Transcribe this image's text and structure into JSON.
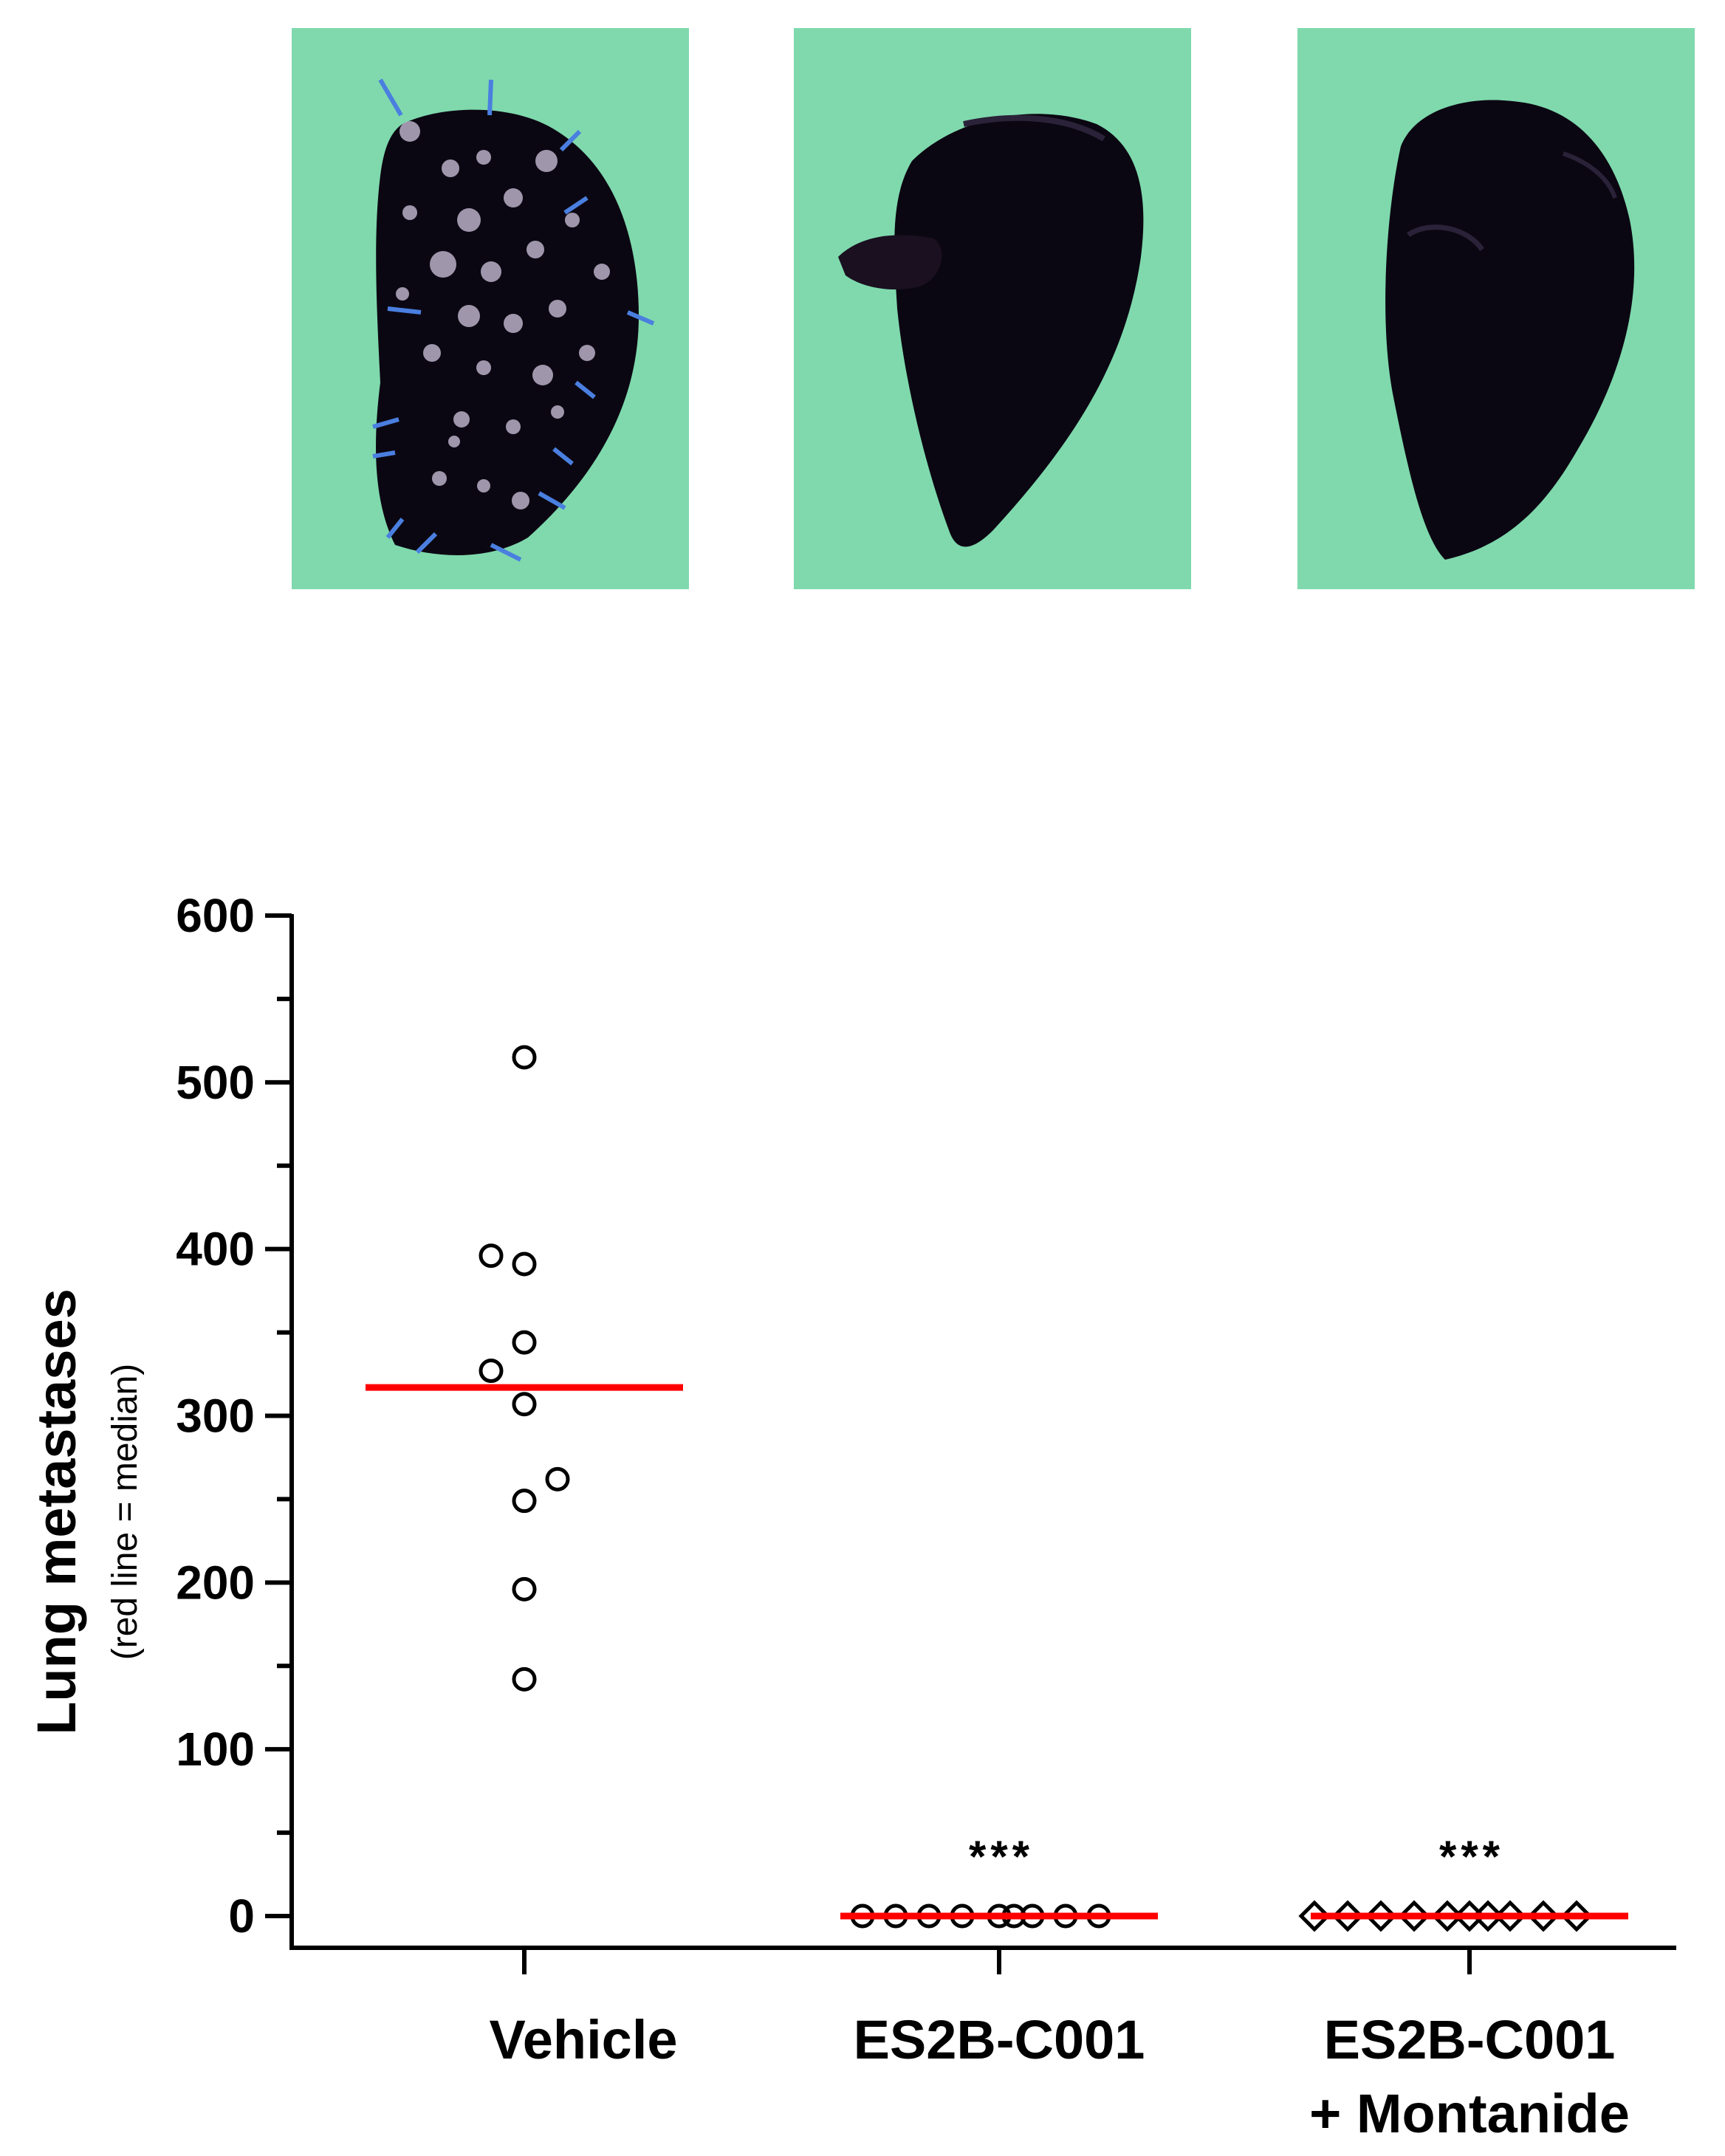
{
  "colors": {
    "background_paper": "#7fd9ad",
    "lung": "#0b0712",
    "metastasis_nodule": "#b9b0c8",
    "arrow": "#4a7fe0",
    "median_line": "#ff0000",
    "marker_stroke": "#000000"
  },
  "photos": [
    {
      "group": "Vehicle",
      "shows_metastases": true
    },
    {
      "group": "ES2B-C001",
      "shows_metastases": false
    },
    {
      "group": "ES2B-C001 + Montanide",
      "shows_metastases": false
    }
  ],
  "chart_data": {
    "type": "scatter",
    "title": "",
    "ylabel": "Lung metastases",
    "ylabel_sub": "(red line = median)",
    "xlabel": "",
    "ylim": [
      0,
      600
    ],
    "yticks": [
      0,
      100,
      200,
      300,
      400,
      500,
      600
    ],
    "yticks_labels": [
      "0",
      "100",
      "200",
      "300",
      "400",
      "500",
      "600"
    ],
    "grid": false,
    "legend": "none",
    "categories": [
      {
        "label_lines": [
          "Vehicle"
        ],
        "marker": "circle",
        "values": [
          515,
          396,
          391,
          344,
          327,
          307,
          262,
          249,
          196,
          142
        ],
        "median": 317,
        "significance": ""
      },
      {
        "label_lines": [
          "ES2B-C001"
        ],
        "marker": "circle",
        "values": [
          0,
          0,
          0,
          0,
          0,
          0,
          0,
          0,
          0
        ],
        "median": 0,
        "significance": "***"
      },
      {
        "label_lines": [
          "ES2B-C001",
          "+ Montanide"
        ],
        "marker": "diamond",
        "values": [
          0,
          0,
          0,
          0,
          0,
          0,
          0,
          0,
          0,
          0
        ],
        "median": 0,
        "significance": "***"
      }
    ]
  }
}
